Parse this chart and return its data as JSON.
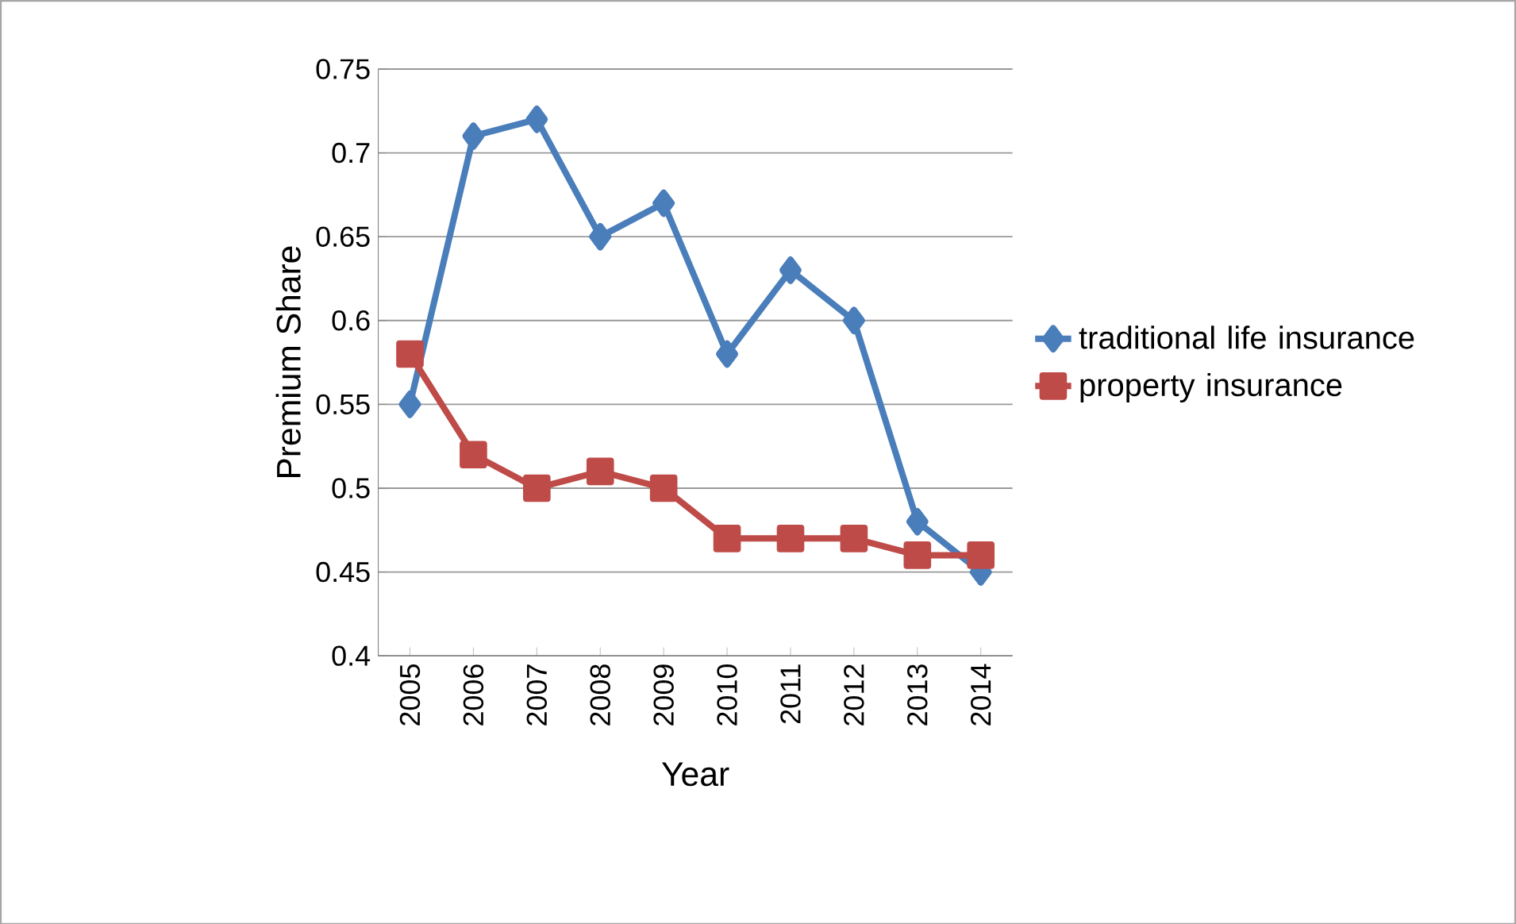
{
  "chart_data": {
    "type": "line",
    "xlabel": "Year",
    "ylabel": "Premium Share",
    "categories": [
      "2005",
      "2006",
      "2007",
      "2008",
      "2009",
      "2010",
      "2011",
      "2012",
      "2013",
      "2014"
    ],
    "series": [
      {
        "name": "traditional life insurance",
        "color": "#4a7ebb",
        "marker": "diamond",
        "values": [
          0.55,
          0.71,
          0.72,
          0.65,
          0.67,
          0.58,
          0.63,
          0.6,
          0.48,
          0.45
        ]
      },
      {
        "name": "property insurance",
        "color": "#be4b48",
        "marker": "square",
        "values": [
          0.58,
          0.52,
          0.5,
          0.51,
          0.5,
          0.47,
          0.47,
          0.47,
          0.46,
          0.46
        ]
      }
    ],
    "ylim": [
      0.4,
      0.75
    ],
    "yticks": [
      0.4,
      0.45,
      0.5,
      0.55,
      0.6,
      0.65,
      0.7,
      0.75
    ],
    "grid": "y",
    "legend": "right",
    "line_style": "solid"
  }
}
